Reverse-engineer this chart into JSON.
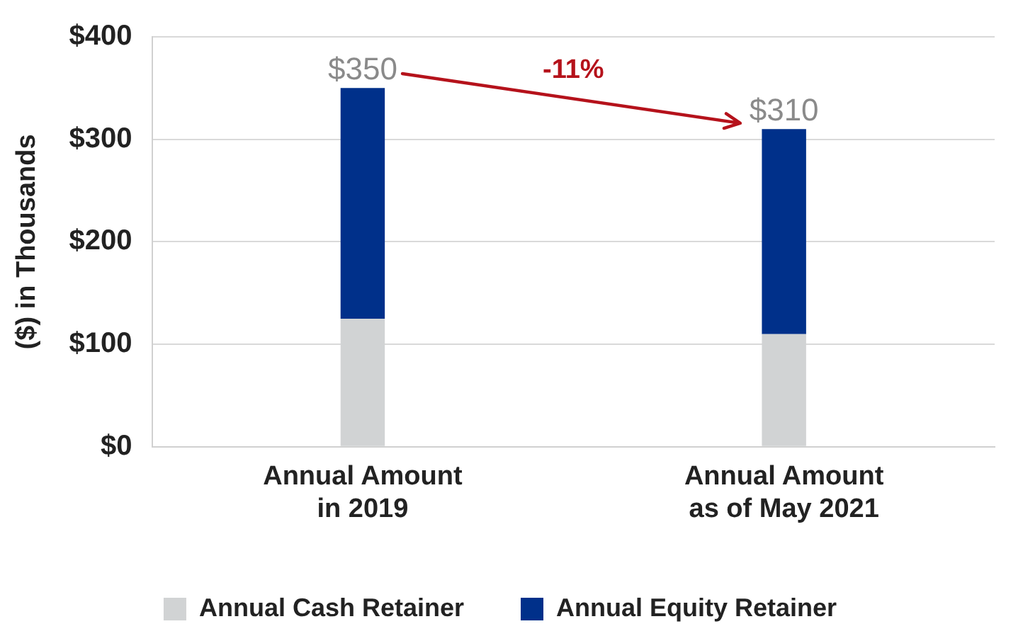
{
  "chart_data": {
    "type": "bar",
    "stacked": true,
    "categories": [
      "Annual Amount\nin 2019",
      "Annual Amount\nas of May 2021"
    ],
    "series": [
      {
        "name": "Annual Cash Retainer",
        "color": "#d1d3d4",
        "values": [
          125,
          110
        ]
      },
      {
        "name": "Annual Equity Retainer",
        "color": "#00308a",
        "values": [
          225,
          200
        ]
      }
    ],
    "ylabel": "($) in Thousands",
    "ylim": [
      0,
      400
    ],
    "yticks": [
      {
        "value": 0,
        "label": "$0"
      },
      {
        "value": 100,
        "label": "$100"
      },
      {
        "value": 200,
        "label": "$200"
      },
      {
        "value": 300,
        "label": "$300"
      },
      {
        "value": 400,
        "label": "$400"
      }
    ],
    "totals": [
      "$350",
      "$310"
    ],
    "annotations": [
      "-11%"
    ],
    "grid": "y",
    "legend": "bottom"
  }
}
